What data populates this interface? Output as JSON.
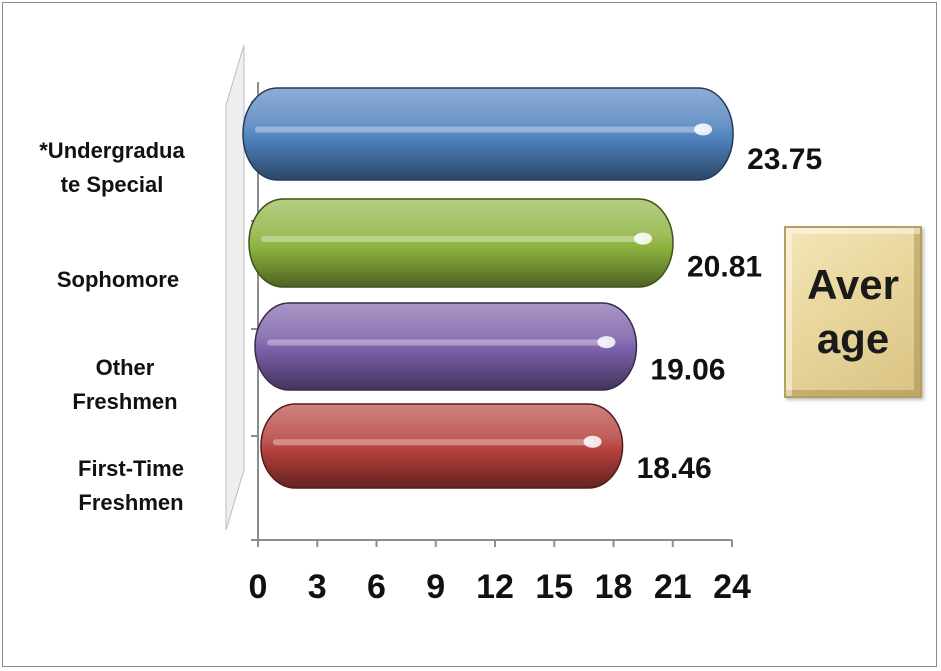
{
  "chart_data": {
    "type": "bar",
    "orientation": "horizontal",
    "categories": [
      "*Undergraduate Special",
      "Sophomore",
      "Other Freshmen",
      "First-Time Freshmen"
    ],
    "category_display": [
      "*Undergradua\nte Special",
      "Sophomore",
      "Other\nFreshmen",
      "First-Time\nFreshmen"
    ],
    "values": [
      23.75,
      20.81,
      19.06,
      18.46
    ],
    "value_labels": [
      "23.75",
      "20.81",
      "19.06",
      "18.46"
    ],
    "colors": [
      "#4f81bd",
      "#8db33e",
      "#7a5ea8",
      "#b5403c"
    ],
    "series": [
      {
        "name": "Average",
        "values": [
          23.75,
          20.81,
          19.06,
          18.46
        ]
      }
    ],
    "xlim": [
      0,
      24
    ],
    "x_ticks": [
      0,
      3,
      6,
      9,
      12,
      15,
      18,
      21,
      24
    ],
    "x_tick_labels": [
      "0",
      "3",
      "6",
      "9",
      "12",
      "15",
      "18",
      "21",
      "24"
    ],
    "legend_text": "Average",
    "legend_placement": "right",
    "title": "",
    "xlabel": "",
    "ylabel": "",
    "grid": false
  }
}
